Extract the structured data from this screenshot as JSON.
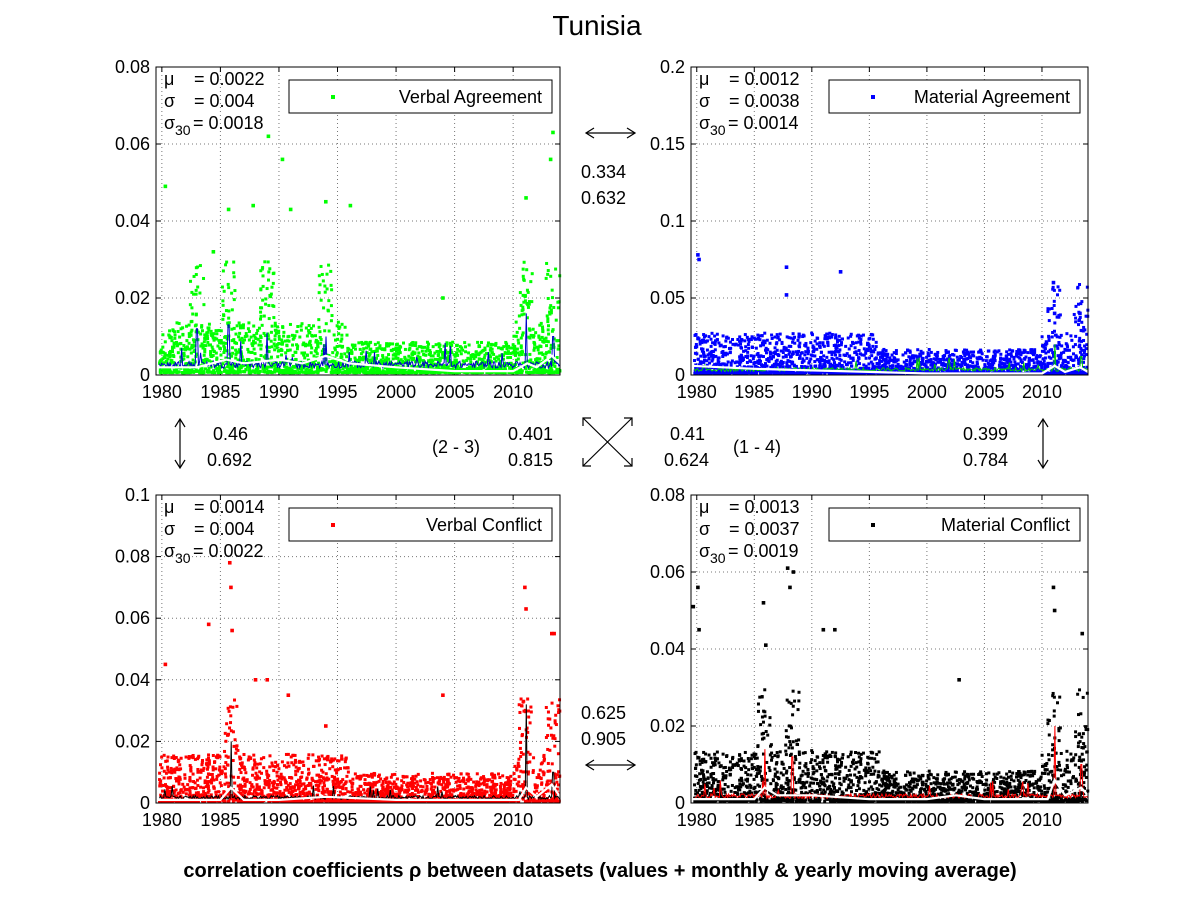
{
  "title": "Tunisia",
  "footer": "correlation coefficients ρ between datasets (values + monthly & yearly moving average)",
  "stat_labels": {
    "mu": "μ",
    "sigma": "σ",
    "sigma30": "σ",
    "sigma30_sub": "30"
  },
  "colors": {
    "verbal_agreement": "#00ff00",
    "material_agreement": "#0000ff",
    "verbal_conflict": "#ff0000",
    "material_conflict": "#000000",
    "moving_avg": "#ffffff"
  },
  "chart_data": [
    {
      "type": "scatter",
      "legend": "Verbal Agreement",
      "legend_location": "top-right",
      "marker_color": "#00ff00",
      "monthly_avg_color": "#0000cc",
      "yearly_avg_color": "#ffffff",
      "stats": {
        "mu": "= 0.0022",
        "sigma": "= 0.004",
        "sigma30": "= 0.0018"
      },
      "xlim": [
        1979.5,
        2014
      ],
      "ylim": [
        0,
        0.08
      ],
      "xticks": [
        "1980",
        "1985",
        "1990",
        "1995",
        "2000",
        "2005",
        "2010"
      ],
      "yticks": [
        "0",
        "0.02",
        "0.04",
        "0.06",
        "0.08"
      ],
      "grid": true,
      "baseline": 0.003,
      "spread": 0.006,
      "outliers": [
        [
          1980.3,
          0.049
        ],
        [
          1984.4,
          0.032
        ],
        [
          1985.7,
          0.043
        ],
        [
          1987.8,
          0.044
        ],
        [
          1989.1,
          0.062
        ],
        [
          1990.3,
          0.056
        ],
        [
          1991.0,
          0.043
        ],
        [
          1994.0,
          0.045
        ],
        [
          1996.1,
          0.044
        ],
        [
          2004.0,
          0.02
        ],
        [
          2011.1,
          0.046
        ],
        [
          2013.2,
          0.056
        ],
        [
          2013.4,
          0.063
        ]
      ],
      "yearly_avg": [
        [
          1979.5,
          0.002
        ],
        [
          1983,
          0.002
        ],
        [
          1985.5,
          0.004
        ],
        [
          1987,
          0.003
        ],
        [
          1990,
          0.004
        ],
        [
          1992,
          0.003
        ],
        [
          1994,
          0.005
        ],
        [
          1996,
          0.003
        ],
        [
          2000,
          0.002
        ],
        [
          2005,
          0.001
        ],
        [
          2010,
          0.001
        ],
        [
          2011.2,
          0.003
        ],
        [
          2012,
          0.002
        ],
        [
          2013.3,
          0.005
        ],
        [
          2014,
          0.003
        ]
      ],
      "monthly_spikes": [
        [
          1983,
          0.012
        ],
        [
          1985.7,
          0.013
        ],
        [
          1989,
          0.011
        ],
        [
          1994,
          0.01
        ],
        [
          2011.1,
          0.016
        ],
        [
          2013.4,
          0.01
        ]
      ]
    },
    {
      "type": "scatter",
      "legend": "Material Agreement",
      "legend_location": "top-right",
      "marker_color": "#0000ff",
      "monthly_avg_color": "#00cc00",
      "yearly_avg_color": "#ffffff",
      "stats": {
        "mu": "= 0.0012",
        "sigma": "= 0.0038",
        "sigma30": "= 0.0014"
      },
      "xlim": [
        1979.5,
        2014
      ],
      "ylim": [
        0,
        0.2
      ],
      "xticks": [
        "1980",
        "1985",
        "1990",
        "1995",
        "2000",
        "2005",
        "2010"
      ],
      "yticks": [
        "0",
        "0.05",
        "0.1",
        "0.15",
        "0.2"
      ],
      "grid": true,
      "baseline": 0.004,
      "spread": 0.012,
      "outliers": [
        [
          1980.1,
          0.078
        ],
        [
          1980.2,
          0.075
        ],
        [
          1987.8,
          0.07
        ],
        [
          1987.8,
          0.052
        ],
        [
          1992.5,
          0.067
        ],
        [
          2011.0,
          0.06
        ],
        [
          2011.1,
          0.04
        ],
        [
          2013.3,
          0.04
        ]
      ],
      "yearly_avg": [
        [
          1979.5,
          0.006
        ],
        [
          1985,
          0.004
        ],
        [
          1990,
          0.003
        ],
        [
          1995,
          0.002
        ],
        [
          2000,
          0.001
        ],
        [
          2005,
          0.001
        ],
        [
          2010,
          0.001
        ],
        [
          2011.1,
          0.006
        ],
        [
          2012,
          0.002
        ],
        [
          2013.3,
          0.005
        ],
        [
          2014,
          0.002
        ]
      ],
      "monthly_spikes": [
        [
          2011.1,
          0.02
        ],
        [
          2013.4,
          0.012
        ]
      ]
    },
    {
      "type": "scatter",
      "legend": "Verbal Conflict",
      "legend_location": "top-right",
      "marker_color": "#ff0000",
      "monthly_avg_color": "#000000",
      "yearly_avg_color": "#ffffff",
      "stats": {
        "mu": "= 0.0014",
        "sigma": "= 0.004",
        "sigma30": "= 0.0022"
      },
      "xlim": [
        1979.5,
        2014
      ],
      "ylim": [
        0,
        0.1
      ],
      "xticks": [
        "1980",
        "1985",
        "1990",
        "1995",
        "2000",
        "2005",
        "2010"
      ],
      "yticks": [
        "0",
        "0.02",
        "0.04",
        "0.06",
        "0.08",
        "0.1"
      ],
      "grid": true,
      "baseline": 0.002,
      "spread": 0.007,
      "outliers": [
        [
          1980.3,
          0.045
        ],
        [
          1984.0,
          0.058
        ],
        [
          1985.8,
          0.078
        ],
        [
          1985.9,
          0.07
        ],
        [
          1986.0,
          0.056
        ],
        [
          1988.0,
          0.04
        ],
        [
          1989.0,
          0.04
        ],
        [
          1990.8,
          0.035
        ],
        [
          1994.0,
          0.025
        ],
        [
          2004.0,
          0.035
        ],
        [
          2011.0,
          0.07
        ],
        [
          2011.1,
          0.063
        ],
        [
          2013.3,
          0.055
        ],
        [
          2013.5,
          0.055
        ]
      ],
      "yearly_avg": [
        [
          1979.5,
          0.001
        ],
        [
          1985,
          0.001
        ],
        [
          1985.9,
          0.005
        ],
        [
          1987,
          0.001
        ],
        [
          1990,
          0.001
        ],
        [
          1994,
          0.002
        ],
        [
          2000,
          0.001
        ],
        [
          2005,
          0.001
        ],
        [
          2010.5,
          0.001
        ],
        [
          2011.1,
          0.005
        ],
        [
          2012,
          0.002
        ],
        [
          2013.3,
          0.006
        ],
        [
          2014,
          0.002
        ]
      ],
      "monthly_spikes": [
        [
          1985.9,
          0.02
        ],
        [
          2011.1,
          0.032
        ],
        [
          2013.4,
          0.01
        ]
      ]
    },
    {
      "type": "scatter",
      "legend": "Material Conflict",
      "legend_location": "top-right",
      "marker_color": "#000000",
      "monthly_avg_color": "#ff0000",
      "yearly_avg_color": "#ffffff",
      "stats": {
        "mu": "= 0.0013",
        "sigma": "= 0.0037",
        "sigma30": "= 0.0019"
      },
      "xlim": [
        1979.5,
        2014
      ],
      "ylim": [
        0,
        0.08
      ],
      "xticks": [
        "1980",
        "1985",
        "1990",
        "1995",
        "2000",
        "2005",
        "2010"
      ],
      "yticks": [
        "0",
        "0.02",
        "0.04",
        "0.06",
        "0.08"
      ],
      "grid": true,
      "baseline": 0.002,
      "spread": 0.006,
      "outliers": [
        [
          1979.7,
          0.051
        ],
        [
          1980.1,
          0.056
        ],
        [
          1980.2,
          0.045
        ],
        [
          1985.8,
          0.052
        ],
        [
          1986.0,
          0.041
        ],
        [
          1987.9,
          0.061
        ],
        [
          1988.1,
          0.056
        ],
        [
          1988.4,
          0.06
        ],
        [
          1991.0,
          0.045
        ],
        [
          1992.0,
          0.045
        ],
        [
          2002.8,
          0.032
        ],
        [
          2011.0,
          0.056
        ],
        [
          2011.1,
          0.05
        ],
        [
          2013.5,
          0.044
        ]
      ],
      "yearly_avg": [
        [
          1979.5,
          0.001
        ],
        [
          1985,
          0.001
        ],
        [
          1985.9,
          0.004
        ],
        [
          1987,
          0.002
        ],
        [
          1990,
          0.002
        ],
        [
          1995,
          0.001
        ],
        [
          2000,
          0.001
        ],
        [
          2002.5,
          0.002
        ],
        [
          2005,
          0.001
        ],
        [
          2010.5,
          0.001
        ],
        [
          2011.1,
          0.006
        ],
        [
          2012,
          0.002
        ],
        [
          2013.4,
          0.004
        ],
        [
          2014,
          0.002
        ]
      ],
      "monthly_spikes": [
        [
          1985.9,
          0.014
        ],
        [
          1988.3,
          0.012
        ],
        [
          2011.1,
          0.02
        ],
        [
          2013.4,
          0.01
        ]
      ]
    }
  ],
  "correlations": {
    "top": [
      "0.334",
      "0.632"
    ],
    "left": [
      "0.46",
      "0.692"
    ],
    "diag_23": [
      "0.401",
      "0.815"
    ],
    "diag_23_label": "(2 - 3)",
    "diag_14": [
      "0.41",
      "0.624"
    ],
    "diag_14_label": "(1 - 4)",
    "right": [
      "0.399",
      "0.784"
    ],
    "bottom": [
      "0.625",
      "0.905"
    ]
  }
}
